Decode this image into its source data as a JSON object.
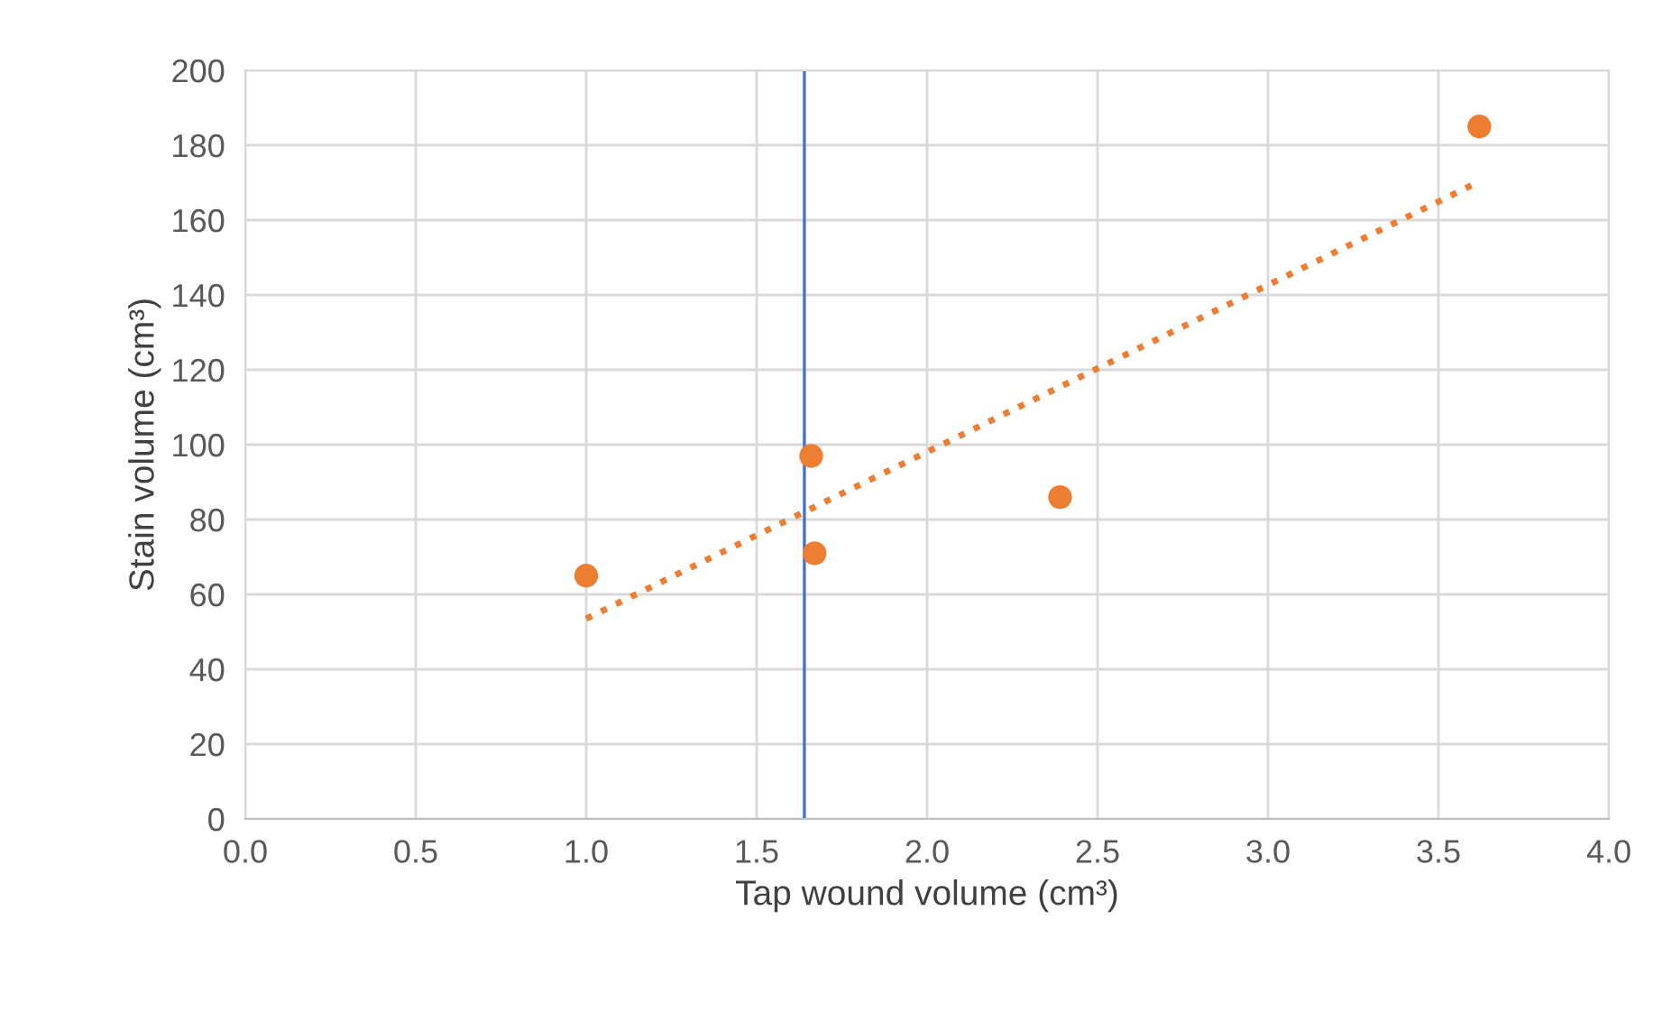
{
  "chart_data": {
    "type": "scatter",
    "xlabel": "Tap wound volume (cm³)",
    "ylabel": "Stain volume (cm³)",
    "x": [
      1.0,
      1.66,
      1.67,
      2.39,
      3.62
    ],
    "series": [
      {
        "color": "#ed7d31",
        "values": [
          65,
          97,
          71,
          86,
          185
        ],
        "marker": "circle"
      },
      {
        "type": "line",
        "color": "#ed7d31",
        "x": [
          1.0,
          3.6
        ],
        "values": [
          53.5,
          169.4
        ],
        "line_style": "dotted"
      }
    ],
    "ref_lines": [
      {
        "axis": "x",
        "value": 1.64,
        "color": "#4472c4",
        "line_style": "solid"
      }
    ],
    "xlim": [
      0,
      4
    ],
    "xticks": [
      {
        "value": 0,
        "label": "0.0"
      },
      {
        "value": 0.5,
        "label": "0.5"
      },
      {
        "value": 1,
        "label": "1.0"
      },
      {
        "value": 1.5,
        "label": "1.5"
      },
      {
        "value": 2,
        "label": "2.0"
      },
      {
        "value": 2.5,
        "label": "2.5"
      },
      {
        "value": 3,
        "label": "3.0"
      },
      {
        "value": 3.5,
        "label": "3.5"
      },
      {
        "value": 4,
        "label": "4.0"
      }
    ],
    "ylim": [
      0,
      200
    ],
    "yticks": [
      0,
      20,
      40,
      60,
      80,
      100,
      120,
      140,
      160,
      180,
      200
    ],
    "grid": true
  }
}
